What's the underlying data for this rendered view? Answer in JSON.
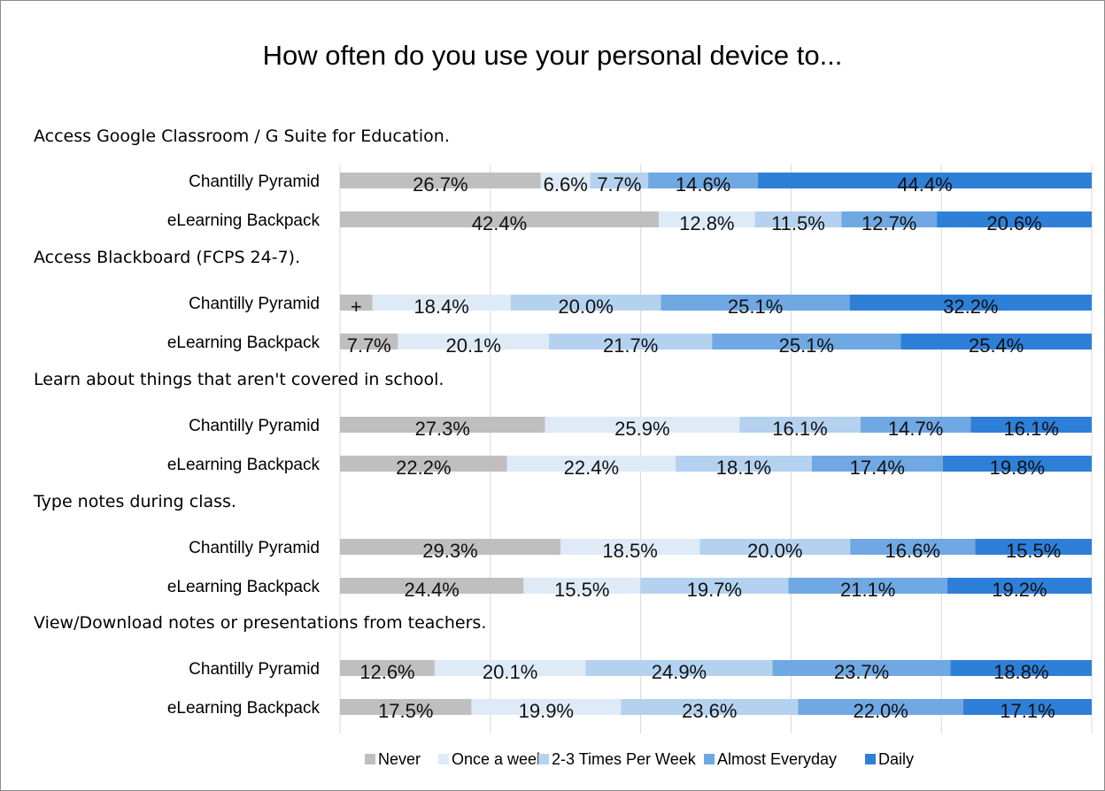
{
  "chart_data": {
    "type": "bar",
    "orientation": "horizontal",
    "stacked": true,
    "normalized_100_percent": true,
    "title": "How often do you use your personal device to...",
    "xlim": [
      0,
      100
    ],
    "grid": true,
    "legend_position": "bottom-right",
    "categories": [
      "Never",
      "Once a week",
      "2-3 Times Per Week",
      "Almost Everyday",
      "Daily"
    ],
    "colors": [
      "#bfbfbf",
      "#deebf7",
      "#b4d2f0",
      "#6fa8e2",
      "#2e7fd8"
    ],
    "groups": [
      {
        "label": "Access Google Classroom / G Suite for Education.",
        "rows": [
          {
            "name": "Chantilly Pyramid",
            "values": [
              26.7,
              6.6,
              7.7,
              14.6,
              44.4
            ],
            "labels": [
              "26.7%",
              "6.6%",
              "7.7%",
              "14.6%",
              "44.4%"
            ]
          },
          {
            "name": "eLearning Backpack",
            "values": [
              42.4,
              12.8,
              11.5,
              12.7,
              20.6
            ],
            "labels": [
              "42.4%",
              "12.8%",
              "11.5%",
              "12.7%",
              "20.6%"
            ]
          }
        ]
      },
      {
        "label": "Access Blackboard (FCPS 24-7).",
        "rows": [
          {
            "name": "Chantilly Pyramid",
            "values": [
              4.3,
              18.4,
              20.0,
              25.1,
              32.2
            ],
            "labels": [
              "+",
              "18.4%",
              "20.0%",
              "25.1%",
              "32.2%"
            ]
          },
          {
            "name": "eLearning Backpack",
            "values": [
              7.7,
              20.1,
              21.7,
              25.1,
              25.4
            ],
            "labels": [
              "7.7%",
              "20.1%",
              "21.7%",
              "25.1%",
              "25.4%"
            ]
          }
        ]
      },
      {
        "label": "Learn about things that aren't covered in school.",
        "rows": [
          {
            "name": "Chantilly Pyramid",
            "values": [
              27.3,
              25.9,
              16.1,
              14.7,
              16.1
            ],
            "labels": [
              "27.3%",
              "25.9%",
              "16.1%",
              "14.7%",
              "16.1%"
            ]
          },
          {
            "name": "eLearning Backpack",
            "values": [
              22.2,
              22.4,
              18.1,
              17.4,
              19.8
            ],
            "labels": [
              "22.2%",
              "22.4%",
              "18.1%",
              "17.4%",
              "19.8%"
            ]
          }
        ]
      },
      {
        "label": "Type notes during class.",
        "rows": [
          {
            "name": "Chantilly Pyramid",
            "values": [
              29.3,
              18.5,
              20.0,
              16.6,
              15.5
            ],
            "labels": [
              "29.3%",
              "18.5%",
              "20.0%",
              "16.6%",
              "15.5%"
            ]
          },
          {
            "name": "eLearning Backpack",
            "values": [
              24.4,
              15.5,
              19.7,
              21.1,
              19.2
            ],
            "labels": [
              "24.4%",
              "15.5%",
              "19.7%",
              "21.1%",
              "19.2%"
            ]
          }
        ]
      },
      {
        "label": "View/Download notes or presentations from teachers.",
        "rows": [
          {
            "name": "Chantilly Pyramid",
            "values": [
              12.6,
              20.1,
              24.9,
              23.7,
              18.8
            ],
            "labels": [
              "12.6%",
              "20.1%",
              "24.9%",
              "23.7%",
              "18.8%"
            ]
          },
          {
            "name": "eLearning Backpack",
            "values": [
              17.5,
              19.9,
              23.6,
              22.0,
              17.1
            ],
            "labels": [
              "17.5%",
              "19.9%",
              "23.6%",
              "22.0%",
              "17.1%"
            ]
          }
        ]
      }
    ]
  }
}
